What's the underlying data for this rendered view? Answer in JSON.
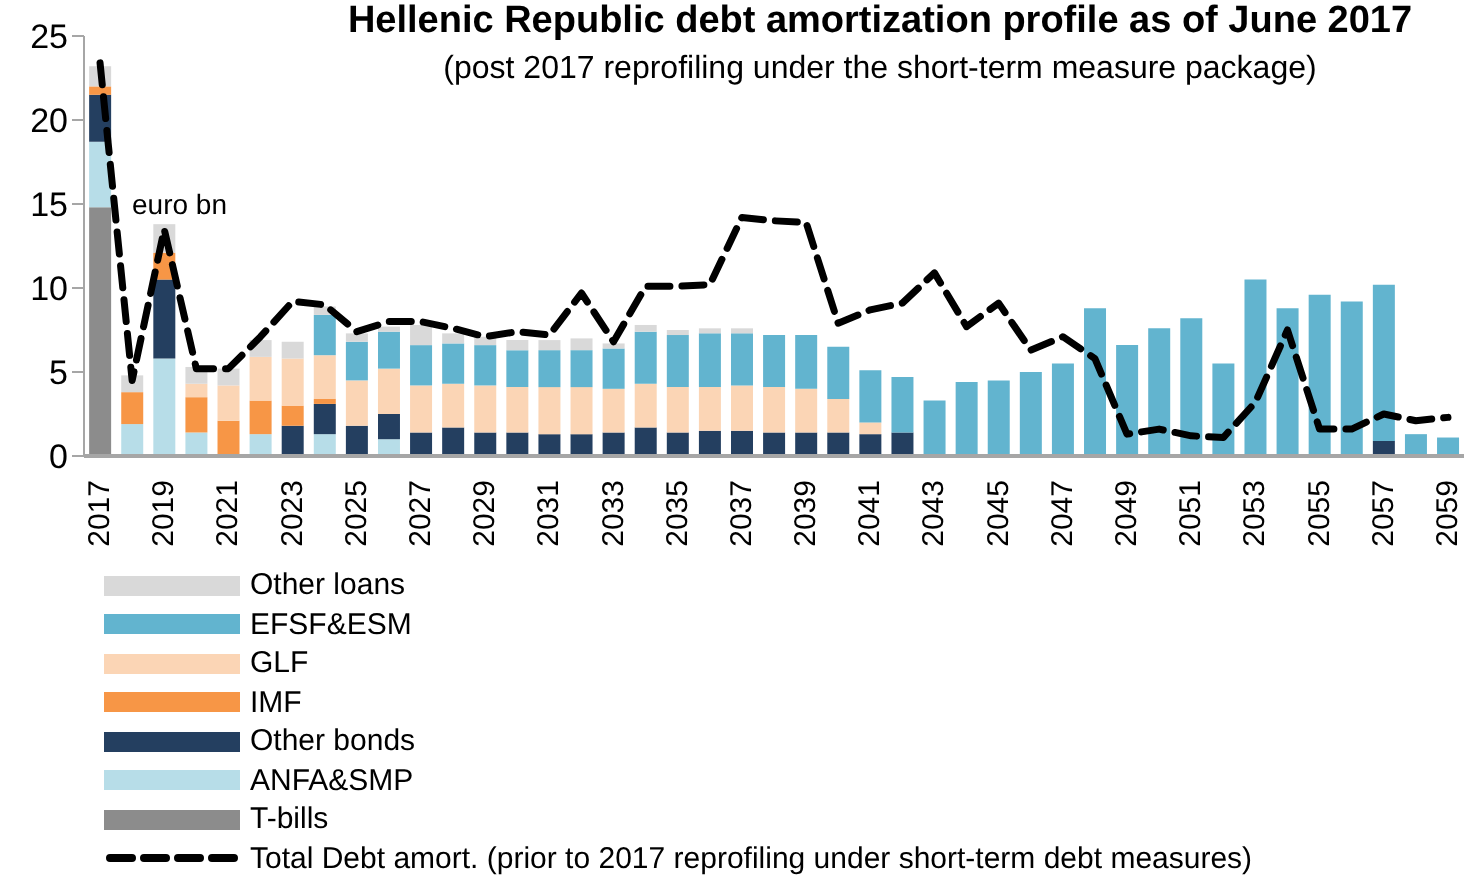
{
  "chart_data": {
    "type": "bar",
    "title": "Hellenic Republic debt amortization profile as of June 2017",
    "subtitle": "(post 2017 reprofiling under the short-term measure package)",
    "annotations": [
      "euro bn"
    ],
    "categories": [
      "2017",
      null,
      "2019",
      null,
      "2021",
      null,
      "2023",
      null,
      "2025",
      null,
      "2027",
      null,
      "2029",
      null,
      "2031",
      null,
      "2033",
      null,
      "2035",
      null,
      "2037",
      null,
      "2039",
      null,
      "2041",
      null,
      "2043",
      null,
      "2045",
      null,
      "2047",
      null,
      "2049",
      null,
      "2051",
      null,
      "2053",
      null,
      "2055",
      null,
      "2057",
      null,
      "2059"
    ],
    "stacked": true,
    "ylim": [
      0,
      25
    ],
    "yticks": [
      0,
      5,
      10,
      15,
      20,
      25
    ],
    "grid": false,
    "legend": "bottom",
    "series": [
      {
        "name": "T-bills",
        "color": "#8c8c8c",
        "values": [
          14.8,
          0,
          0,
          0,
          0,
          0,
          0,
          0,
          0,
          0,
          0,
          0,
          0,
          0,
          0,
          0,
          0,
          0,
          0,
          0,
          0,
          0,
          0,
          0,
          0,
          0,
          0,
          0,
          0,
          0,
          0,
          0,
          0,
          0,
          0,
          0,
          0,
          0,
          0,
          0,
          0,
          0,
          0
        ]
      },
      {
        "name": "ANFA&SMP",
        "color": "#b7dde8",
        "values": [
          3.9,
          1.9,
          5.8,
          1.4,
          0,
          1.3,
          0,
          1.3,
          0,
          1.0,
          0,
          0,
          0,
          0,
          0,
          0,
          0,
          0,
          0,
          0,
          0,
          0,
          0,
          0,
          0,
          0,
          0,
          0,
          0,
          0,
          0,
          0,
          0,
          0,
          0,
          0,
          0,
          0,
          0,
          0,
          0,
          0,
          0
        ]
      },
      {
        "name": "Other bonds",
        "color": "#243f60",
        "values": [
          2.8,
          0,
          4.7,
          0,
          0,
          0,
          1.8,
          1.8,
          1.8,
          1.5,
          1.4,
          1.7,
          1.4,
          1.4,
          1.3,
          1.3,
          1.4,
          1.7,
          1.4,
          1.5,
          1.5,
          1.4,
          1.4,
          1.4,
          1.3,
          1.4,
          0,
          0,
          0,
          0,
          0,
          0,
          0,
          0,
          0,
          0,
          0,
          0,
          0,
          0,
          0.9,
          0,
          0
        ]
      },
      {
        "name": "IMF",
        "color": "#f79646",
        "values": [
          0.5,
          1.9,
          1.6,
          2.1,
          2.1,
          2.0,
          1.2,
          0.3,
          0,
          0,
          0,
          0,
          0,
          0,
          0,
          0,
          0,
          0,
          0,
          0,
          0,
          0,
          0,
          0,
          0,
          0,
          0,
          0,
          0,
          0,
          0,
          0,
          0,
          0,
          0,
          0,
          0,
          0,
          0,
          0,
          0,
          0,
          0
        ]
      },
      {
        "name": "GLF",
        "color": "#fbd5b5",
        "values": [
          0,
          0,
          0,
          0.8,
          2.1,
          2.6,
          2.8,
          2.6,
          2.7,
          2.7,
          2.8,
          2.6,
          2.8,
          2.7,
          2.8,
          2.8,
          2.6,
          2.6,
          2.7,
          2.6,
          2.7,
          2.7,
          2.6,
          2.0,
          0.7,
          0,
          0,
          0,
          0,
          0,
          0,
          0,
          0,
          0,
          0,
          0,
          0,
          0,
          0,
          0,
          0,
          0,
          0
        ]
      },
      {
        "name": "EFSF&ESM",
        "color": "#62b4cf",
        "values": [
          0,
          0,
          0,
          0,
          0,
          0,
          0,
          2.4,
          2.3,
          2.2,
          2.4,
          2.4,
          2.4,
          2.2,
          2.2,
          2.2,
          2.4,
          3.1,
          3.1,
          3.2,
          3.1,
          3.1,
          3.2,
          3.1,
          3.1,
          3.3,
          3.3,
          4.4,
          4.5,
          5.0,
          5.5,
          8.8,
          6.6,
          7.6,
          8.2,
          5.5,
          10.5,
          8.8,
          9.6,
          9.2,
          9.3,
          1.3,
          1.1
        ]
      },
      {
        "name": "Other loans",
        "color": "#d9d9d9",
        "values": [
          1.2,
          1.0,
          1.7,
          1.0,
          1.0,
          1.0,
          1.0,
          0.5,
          0.5,
          0.3,
          1.2,
          0.6,
          0.5,
          0.6,
          0.6,
          0.7,
          0.3,
          0.4,
          0.3,
          0.3,
          0.3,
          0,
          0,
          0,
          0,
          0,
          0,
          0,
          0,
          0,
          0,
          0,
          0,
          0,
          0,
          0,
          0,
          0,
          0,
          0,
          0,
          0,
          0
        ]
      },
      {
        "name": "Total Debt amort. (prior to 2017 reprofiling under short-term debt measures)",
        "type": "line",
        "color": "#000000",
        "line_style": "dashed",
        "marker": "none",
        "values": [
          23.4,
          4.5,
          13.5,
          5.2,
          5.2,
          7.1,
          9.2,
          9.0,
          7.4,
          8.0,
          8.0,
          7.6,
          7.1,
          7.4,
          7.2,
          9.7,
          6.8,
          10.1,
          10.1,
          10.2,
          14.2,
          14.0,
          13.9,
          7.9,
          8.7,
          9.1,
          10.9,
          7.7,
          9.1,
          6.3,
          7.1,
          5.8,
          1.3,
          1.6,
          1.2,
          1.1,
          3.2,
          7.5,
          1.6,
          1.6,
          2.5,
          2.1,
          2.3
        ]
      }
    ]
  }
}
